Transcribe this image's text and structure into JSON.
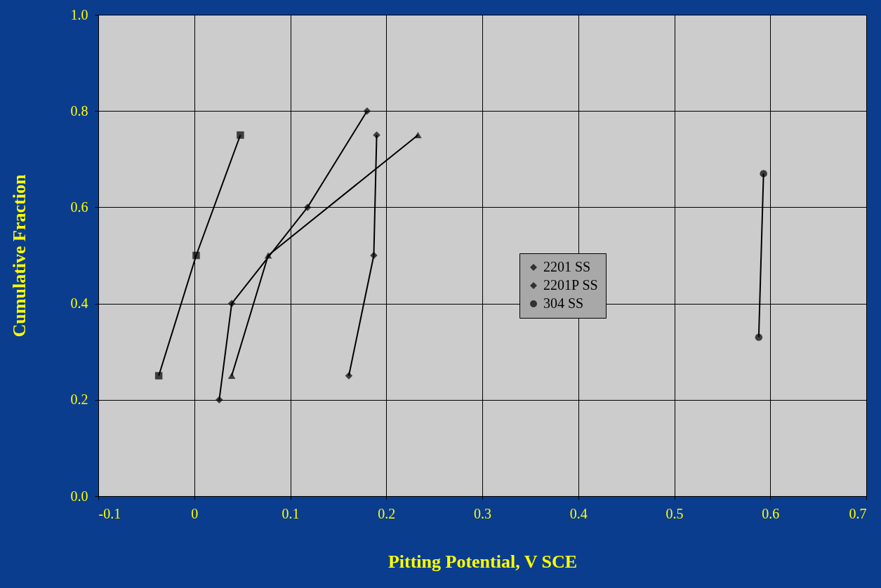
{
  "chart_data": {
    "type": "line",
    "xlabel": "Pitting Potential, V SCE",
    "ylabel": "Cumulative Fraction",
    "xlim": [
      -0.1,
      0.7
    ],
    "xticks": [
      -0.1,
      0,
      0.1,
      0.2,
      0.3,
      0.4,
      0.5,
      0.6,
      0.7
    ],
    "ylim": [
      0,
      1
    ],
    "yticks": [
      {
        "value": 0,
        "label": "0.0"
      },
      {
        "value": 0.2,
        "label": "0.2"
      },
      {
        "value": 0.4,
        "label": "0.4"
      },
      {
        "value": 0.6,
        "label": "0.6"
      },
      {
        "value": 0.8,
        "label": "0.8"
      },
      {
        "value": 1,
        "label": "1.0"
      }
    ],
    "grid": true,
    "legend": "center right",
    "line_style": "solid",
    "series": [
      {
        "name": "2201 SS",
        "color": "#000000",
        "marker": "diamond",
        "x": [
          0.026,
          0.039,
          0.118,
          0.18
        ],
        "values": [
          0.2,
          0.4,
          0.6,
          0.8
        ]
      },
      {
        "name": "2201P SS",
        "color": "#000000",
        "marker": "diamond",
        "x": [
          0.161,
          0.187,
          0.19
        ],
        "values": [
          0.25,
          0.5,
          0.75
        ]
      },
      {
        "color": "#000000",
        "marker": "triangle",
        "x": [
          0.039,
          0.077,
          0.233
        ],
        "values": [
          0.25,
          0.5,
          0.75
        ]
      },
      {
        "color": "#000000",
        "marker": "square",
        "x": [
          -0.037,
          0.002,
          0.048
        ],
        "values": [
          0.25,
          0.5,
          0.75
        ]
      },
      {
        "name": "304 SS",
        "color": "#000000",
        "marker": "circle",
        "x": [
          0.588,
          0.593
        ],
        "values": [
          0.33,
          0.67
        ]
      }
    ]
  }
}
